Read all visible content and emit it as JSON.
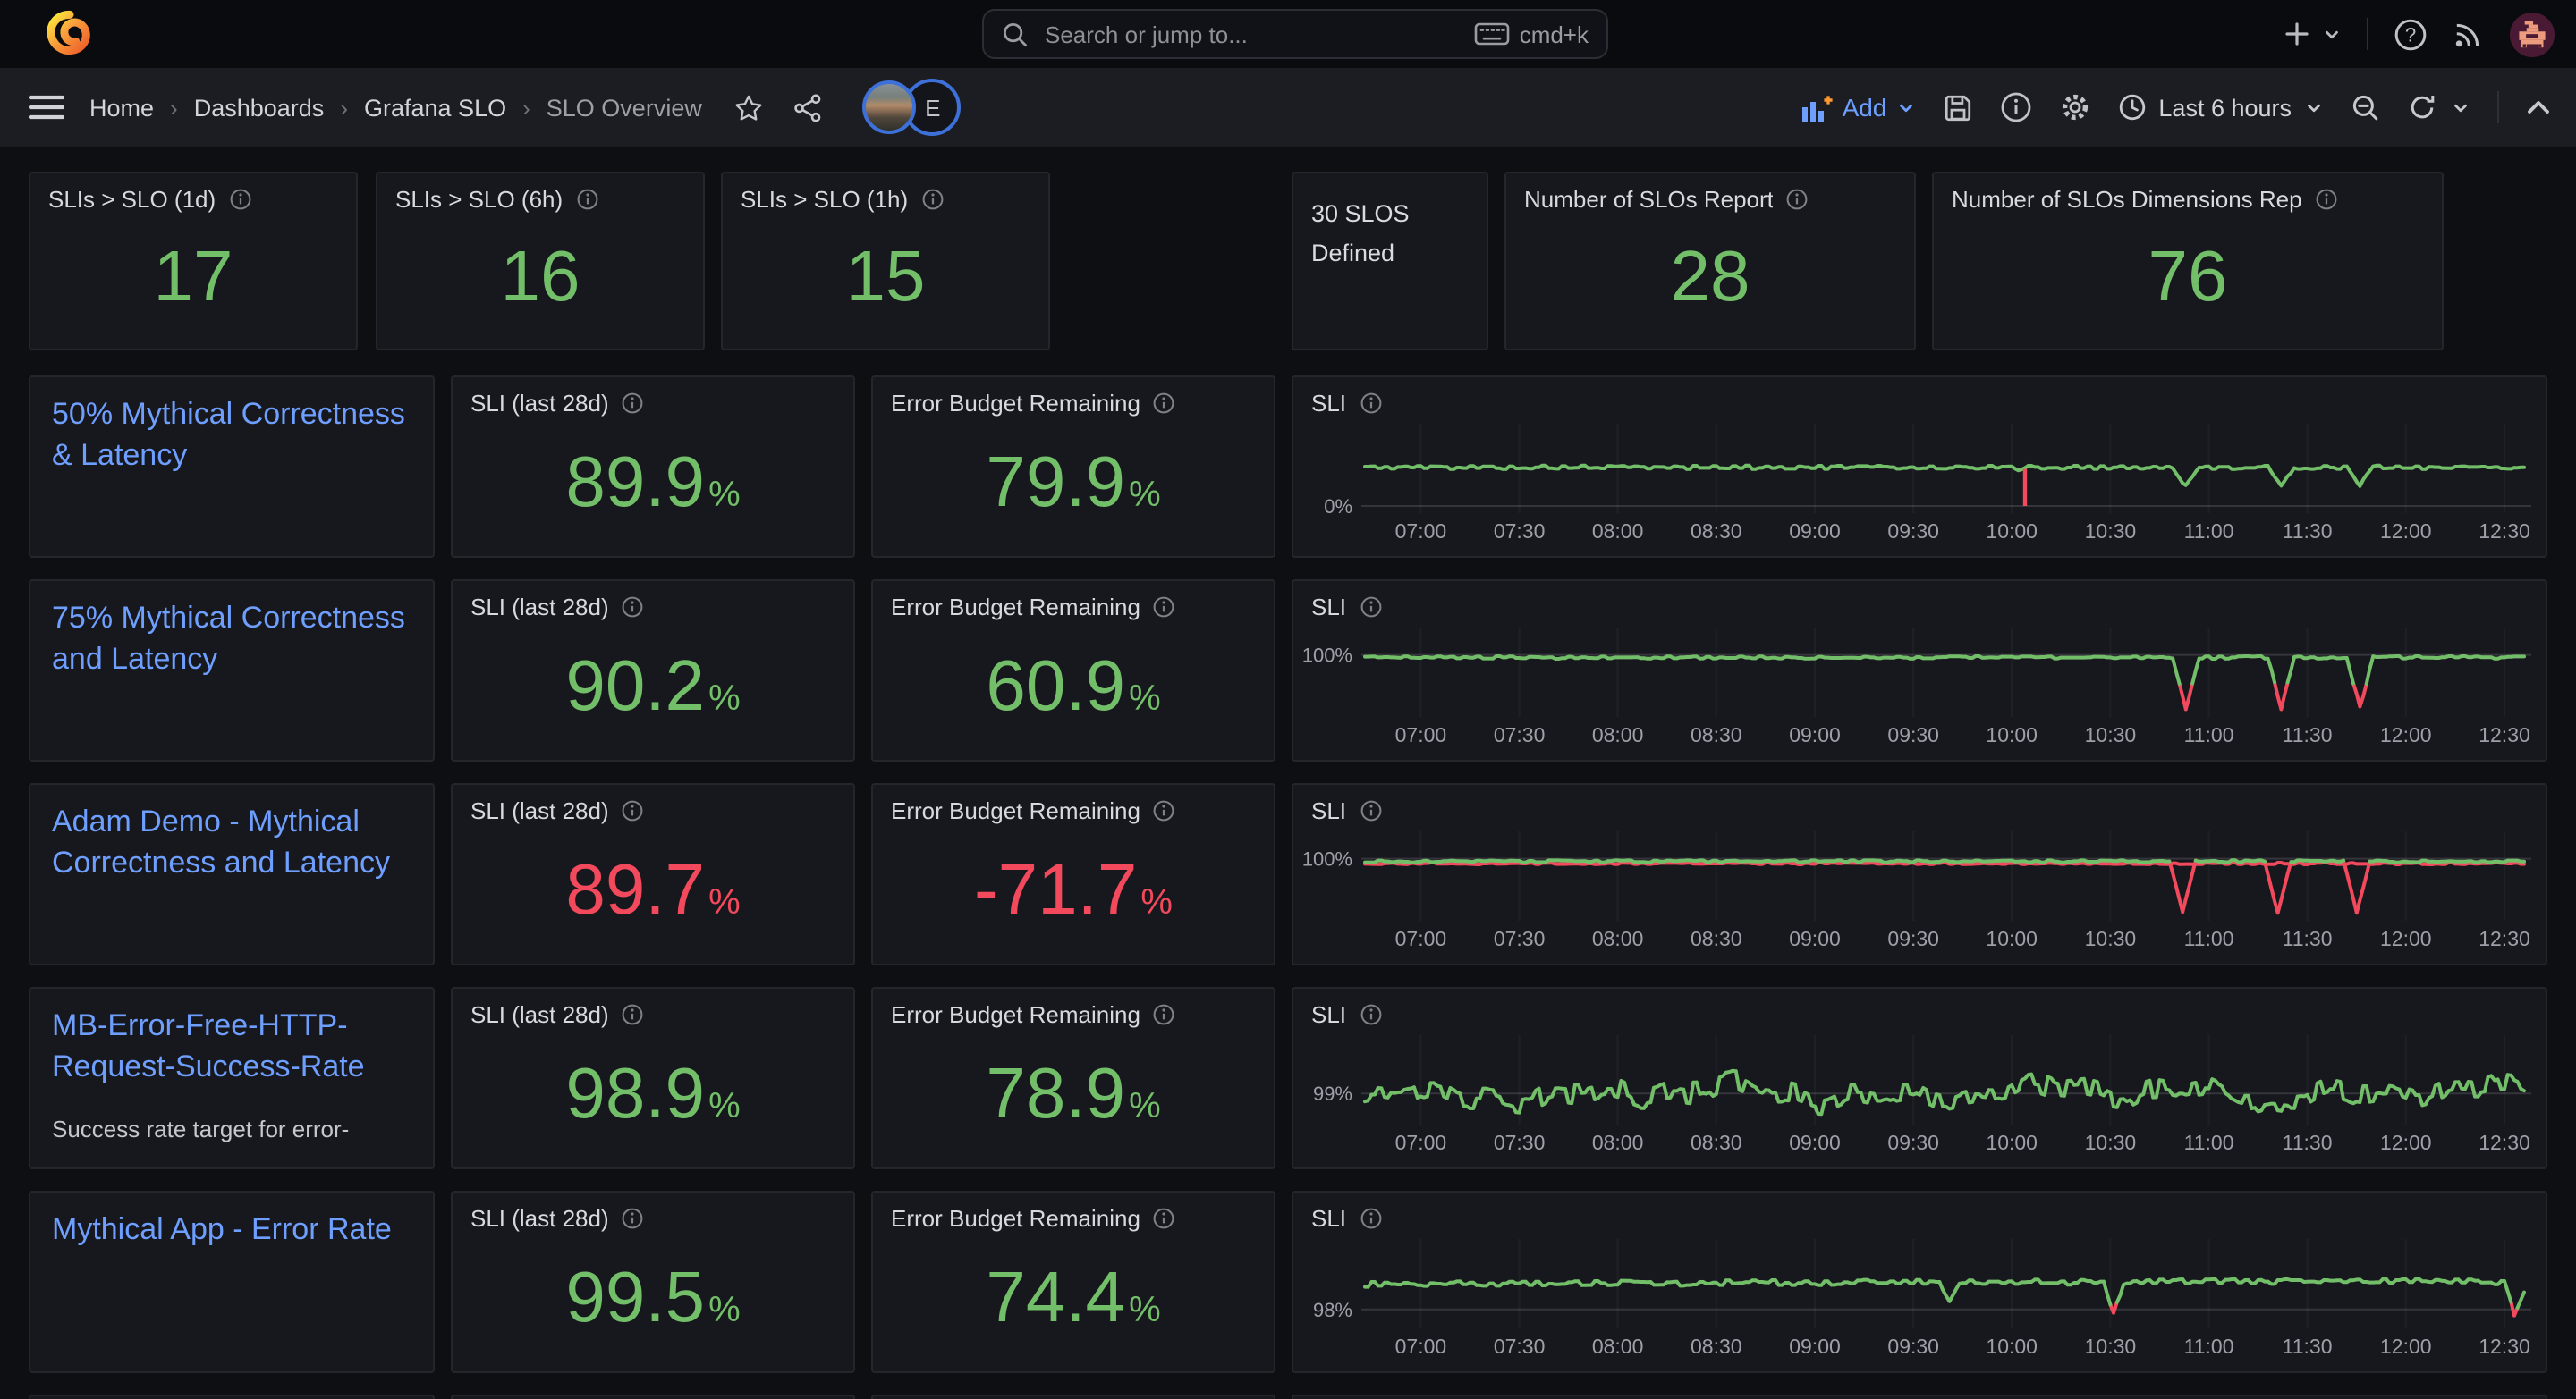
{
  "app": {
    "search_placeholder": "Search or jump to...",
    "search_shortcut": "cmd+k"
  },
  "nav": {
    "breadcrumbs": [
      "Home",
      "Dashboards",
      "Grafana SLO",
      "SLO Overview"
    ],
    "breadcrumb_separator": "›",
    "presence_initial": "E",
    "add_label": "Add",
    "time_range": "Last 6 hours"
  },
  "colors": {
    "green": "#73BF69",
    "red": "#F2495C",
    "link": "#6E9FFF",
    "axis_text": "#9da0a8"
  },
  "summary_row": {
    "stats": [
      {
        "title": "SLIs > SLO (1d)",
        "value": "17",
        "color": "green"
      },
      {
        "title": "SLIs > SLO (6h)",
        "value": "16",
        "color": "green"
      },
      {
        "title": "SLIs > SLO (1h)",
        "value": "15",
        "color": "green"
      }
    ],
    "defined_text": "30 SLOS Defined",
    "wide_stats": [
      {
        "title": "Number of SLOs Report",
        "value": "28",
        "color": "green"
      },
      {
        "title": "Number of SLOs Dimensions Rep",
        "value": "76",
        "color": "green"
      }
    ]
  },
  "stat_titles": {
    "sli": "SLI (last 28d)",
    "ebr": "Error Budget Remaining",
    "chart": "SLI",
    "unit": "%"
  },
  "slo_rows": [
    {
      "name": "50% Mythical Correctness & Latency",
      "sli": "89.9",
      "sli_color": "green",
      "ebr": "79.9",
      "ebr_color": "green"
    },
    {
      "name": "75% Mythical Correctness and Latency",
      "sli": "90.2",
      "sli_color": "green",
      "ebr": "60.9",
      "ebr_color": "green"
    },
    {
      "name": "Adam Demo - Mythical Correctness and Latency",
      "sli": "89.7",
      "sli_color": "red",
      "ebr": "-71.7",
      "ebr_color": "red"
    },
    {
      "name": "MB-Error-Free-HTTP-Request-Success-Rate",
      "description_lines": [
        "Success rate target for error-",
        "free HTTP requests in the"
      ],
      "sli": "98.9",
      "sli_color": "green",
      "ebr": "78.9",
      "ebr_color": "green"
    },
    {
      "name": "Mythical App - Error Rate",
      "sli": "99.5",
      "sli_color": "green",
      "ebr": "74.4",
      "ebr_color": "green"
    }
  ],
  "chart_data": {
    "type": "line",
    "shared": {
      "x_tick_labels": [
        "07:00",
        "07:30",
        "08:00",
        "08:30",
        "09:00",
        "09:30",
        "10:00",
        "10:30",
        "11:00",
        "11:30",
        "12:00",
        "12:30"
      ],
      "x_tick_minutes": [
        420,
        450,
        480,
        510,
        540,
        570,
        600,
        630,
        660,
        690,
        720,
        750
      ],
      "t_domain": [
        403,
        756
      ],
      "grid": true,
      "legend": "none"
    },
    "charts": [
      {
        "panel_title": "SLI",
        "slo": "50% Mythical Correctness & Latency",
        "y_domain": [
          0,
          100
        ],
        "y_ticks": [
          {
            "label": "0%",
            "value": 0
          }
        ],
        "series": [
          {
            "name": "SLI",
            "color": "green",
            "noise": 2.2,
            "points": [
              [
                403,
                47
              ],
              [
                601,
                47
              ],
              [
                603,
                43
              ],
              [
                605,
                47
              ],
              [
                649,
                47
              ],
              [
                653,
                23
              ],
              [
                657,
                47
              ],
              [
                678,
                47
              ],
              [
                682,
                23
              ],
              [
                686,
                47
              ],
              [
                702,
                47
              ],
              [
                706,
                25
              ],
              [
                710,
                47
              ],
              [
                756,
                47
              ]
            ]
          }
        ],
        "red_spikes": [
          {
            "t": 604,
            "v": 0
          }
        ]
      },
      {
        "panel_title": "SLI",
        "slo": "75% Mythical Correctness and Latency",
        "y_domain": [
          78,
          111
        ],
        "y_ticks": [
          {
            "label": "100%",
            "value": 100
          }
        ],
        "series": [
          {
            "name": "SLI",
            "color": "green",
            "noise": 0.55,
            "red_below": 85,
            "points": [
              [
                403,
                99
              ],
              [
                649,
                99
              ],
              [
                653,
                78.5
              ],
              [
                657,
                99
              ],
              [
                678,
                99
              ],
              [
                682,
                78.3
              ],
              [
                686,
                99
              ],
              [
                702,
                99
              ],
              [
                706,
                78.8
              ],
              [
                710,
                99
              ],
              [
                756,
                99
              ]
            ]
          }
        ]
      },
      {
        "panel_title": "SLI",
        "slo": "Adam Demo - Mythical Correctness and Latency",
        "y_domain": [
          78,
          111
        ],
        "y_ticks": [
          {
            "label": "100%",
            "value": 100
          }
        ],
        "series": [
          {
            "name": "SLI lower bound",
            "color": "red",
            "noise": 0.35,
            "points": [
              [
                403,
                98.1
              ],
              [
                756,
                98.1
              ]
            ]
          },
          {
            "name": "SLI",
            "color": "green",
            "noise": 0.45,
            "red_below": 96.5,
            "points": [
              [
                403,
                99
              ],
              [
                648,
                99
              ],
              [
                652,
                78.5
              ],
              [
                656,
                99
              ],
              [
                677,
                99
              ],
              [
                681,
                78.2
              ],
              [
                685,
                99
              ],
              [
                701,
                99
              ],
              [
                705,
                78.6
              ],
              [
                709,
                99
              ],
              [
                756,
                99
              ]
            ]
          }
        ]
      },
      {
        "panel_title": "SLI",
        "slo": "MB-Error-Free-HTTP-Request-Success-Rate",
        "y_domain": [
          98.65,
          99.85
        ],
        "y_ticks": [
          {
            "label": "99%",
            "value": 99
          }
        ],
        "series": [
          {
            "name": "SLI",
            "color": "green",
            "noise": 0.16,
            "wander": true,
            "points": [
              [
                403,
                99.0
              ],
              [
                756,
                99.0
              ]
            ]
          }
        ]
      },
      {
        "panel_title": "SLI",
        "slo": "Mythical App - Error Rate",
        "y_domain": [
          97.85,
          98.9
        ],
        "y_ticks": [
          {
            "label": "98%",
            "value": 98
          }
        ],
        "series": [
          {
            "name": "SLI",
            "color": "green",
            "noise": 0.035,
            "red_below": 98.02,
            "points": [
              [
                403,
                98.32
              ],
              [
                578,
                98.35
              ],
              [
                581,
                98.13
              ],
              [
                584,
                98.35
              ],
              [
                628,
                98.35
              ],
              [
                631,
                97.94
              ],
              [
                634,
                98.35
              ],
              [
                700,
                98.36
              ],
              [
                750,
                98.35
              ],
              [
                753,
                97.93
              ],
              [
                756,
                98.22
              ]
            ]
          }
        ]
      }
    ]
  },
  "icons": [
    "grafana-logo-icon",
    "search-icon",
    "keyboard-icon",
    "plus-icon",
    "chevron-down-icon",
    "help-icon",
    "rss-icon",
    "avatar",
    "hamburger-icon",
    "star-icon",
    "share-icon",
    "bar-chart-add-icon",
    "save-icon",
    "info-icon",
    "gear-icon",
    "clock-icon",
    "zoom-out-icon",
    "refresh-icon",
    "chevron-up-icon"
  ]
}
